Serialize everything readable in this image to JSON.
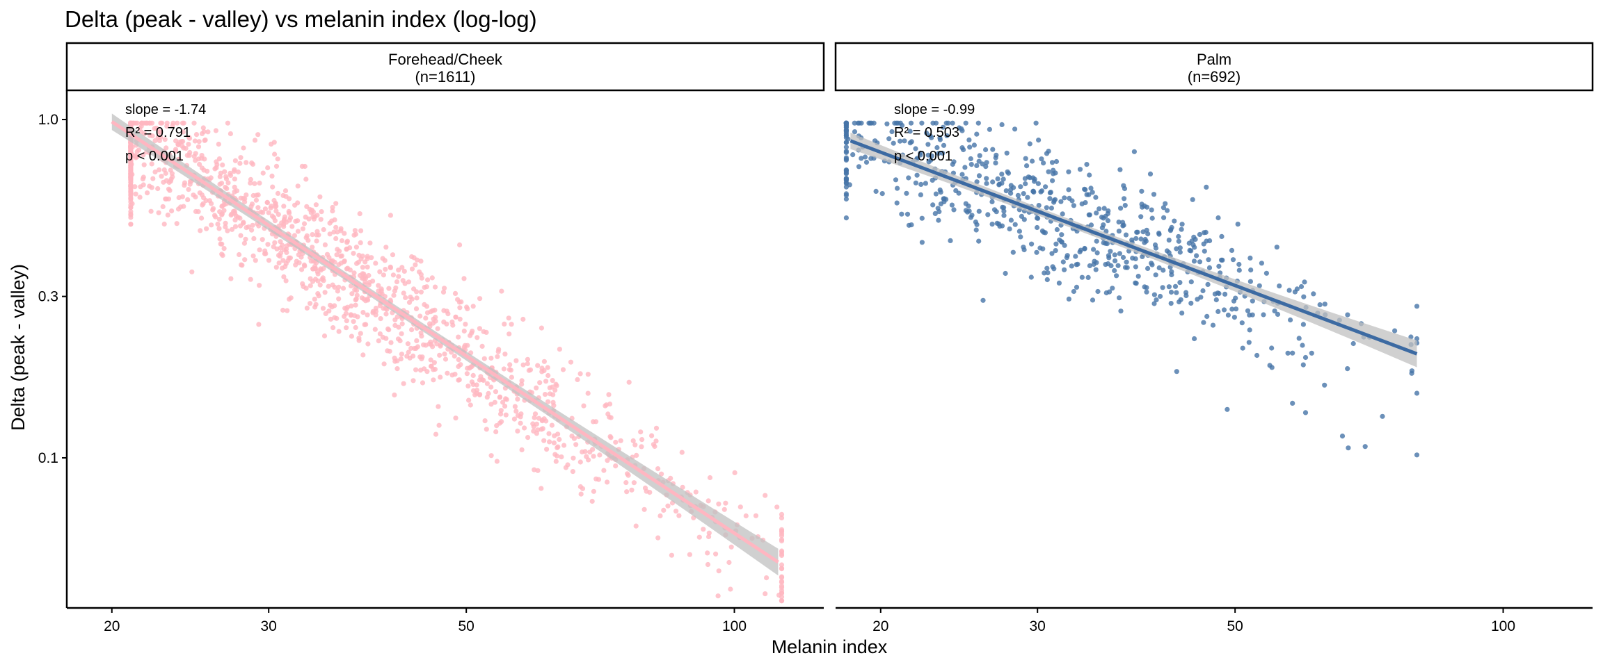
{
  "chart_data": {
    "type": "scatter",
    "title": "Delta (peak - valley) vs melanin index (log-log)",
    "xlabel": "Melanin index",
    "ylabel": "Delta (peak - valley)",
    "x_scale": "log",
    "y_scale": "log",
    "xlim": [
      17.8,
      126
    ],
    "ylim": [
      0.036,
      1.22
    ],
    "x_ticks": [
      20,
      30,
      50,
      100
    ],
    "x_tick_labels": [
      "20",
      "30",
      "50",
      "100"
    ],
    "y_ticks": [
      0.1,
      0.3,
      1.0
    ],
    "y_tick_labels": [
      "0.1",
      "0.3",
      "1.0"
    ],
    "grid": false,
    "legend": "none",
    "panels": [
      {
        "strip_label": "Forehead/Cheek",
        "strip_n": "(n=1611)",
        "point_color": "#ffb6c1",
        "line_color": "#ffb6c1",
        "band_color": "#c0c0c0",
        "n_points": 1611,
        "annotation": {
          "slope": "slope = -1.74",
          "r2": "R² = 0.791",
          "p": "p < 0.001"
        },
        "fit": {
          "slope": -1.74,
          "x": [
            20,
            112
          ],
          "y": [
            0.985,
            0.0494
          ]
        },
        "x_spread": {
          "mean": 33.0,
          "sd_log": 0.26,
          "min": 21,
          "max": 113
        },
        "residual_sd_log": 0.19
      },
      {
        "strip_label": "Palm",
        "strip_n": "(n=692)",
        "point_color": "#4674a8",
        "line_color": "#3c6aa2",
        "band_color": "#c0c0c0",
        "n_points": 692,
        "annotation": {
          "slope": "slope = -0.99",
          "r2": "R² = 0.503",
          "p": "p < 0.001"
        },
        "fit": {
          "slope": -0.99,
          "x": [
            18.5,
            80
          ],
          "y": [
            0.865,
            0.2045
          ]
        },
        "x_spread": {
          "mean": 31.5,
          "sd_log": 0.17,
          "min": 18.3,
          "max": 80
        },
        "residual_sd_log": 0.2,
        "outliers": [
          {
            "x": 66,
            "y": 0.116
          },
          {
            "x": 67,
            "y": 0.107
          },
          {
            "x": 70,
            "y": 0.108
          },
          {
            "x": 80,
            "y": 0.102
          },
          {
            "x": 63,
            "y": 0.164
          },
          {
            "x": 58,
            "y": 0.145
          },
          {
            "x": 60,
            "y": 0.136
          },
          {
            "x": 49,
            "y": 0.139
          },
          {
            "x": 55,
            "y": 0.185
          },
          {
            "x": 58,
            "y": 0.204
          },
          {
            "x": 60,
            "y": 0.198
          },
          {
            "x": 51,
            "y": 0.211
          },
          {
            "x": 45,
            "y": 0.225
          },
          {
            "x": 43,
            "y": 0.18
          }
        ]
      }
    ]
  }
}
